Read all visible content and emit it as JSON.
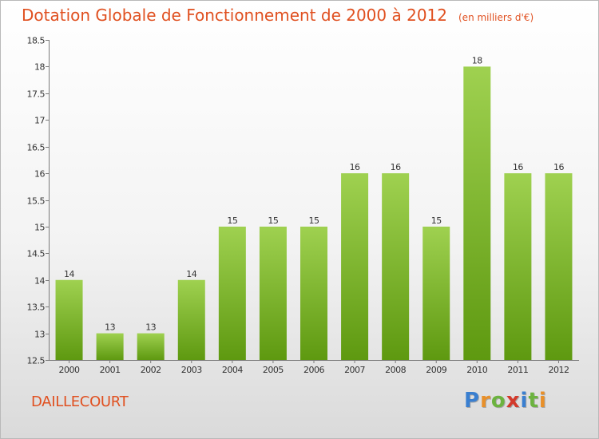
{
  "title": "Dotation Globale de Fonctionnement de 2000 à 2012",
  "subtitle": "(en milliers d'€)",
  "commune": "DAILLECOURT",
  "logo": {
    "p": "P",
    "r": "r",
    "o": "o",
    "x": "x",
    "i1": "i",
    "t": "t",
    "i2": "i"
  },
  "colors": {
    "bar_top": "#9fd150",
    "bar_bottom": "#5e9910",
    "title": "#e05020"
  },
  "chart_data": {
    "type": "bar",
    "categories": [
      "2000",
      "2001",
      "2002",
      "2003",
      "2004",
      "2005",
      "2006",
      "2007",
      "2008",
      "2009",
      "2010",
      "2011",
      "2012"
    ],
    "values": [
      14,
      13,
      13,
      14,
      15,
      15,
      15,
      16,
      16,
      15,
      18,
      16,
      16
    ],
    "value_labels": [
      "14",
      "13",
      "13",
      "14",
      "15",
      "15",
      "15",
      "16",
      "16",
      "15",
      "18",
      "16",
      "16"
    ],
    "ylim": [
      12.5,
      18.5
    ],
    "yticks": [
      12.5,
      13,
      13.5,
      14,
      14.5,
      15,
      15.5,
      16,
      16.5,
      17,
      17.5,
      18,
      18.5
    ],
    "ytick_labels": [
      "12.5",
      "13",
      "13.5",
      "14",
      "14.5",
      "15",
      "15.5",
      "16",
      "16.5",
      "17",
      "17.5",
      "18",
      "18.5"
    ],
    "title": "Dotation Globale de Fonctionnement de 2000 à 2012",
    "xlabel": "",
    "ylabel": "",
    "grid": false
  }
}
